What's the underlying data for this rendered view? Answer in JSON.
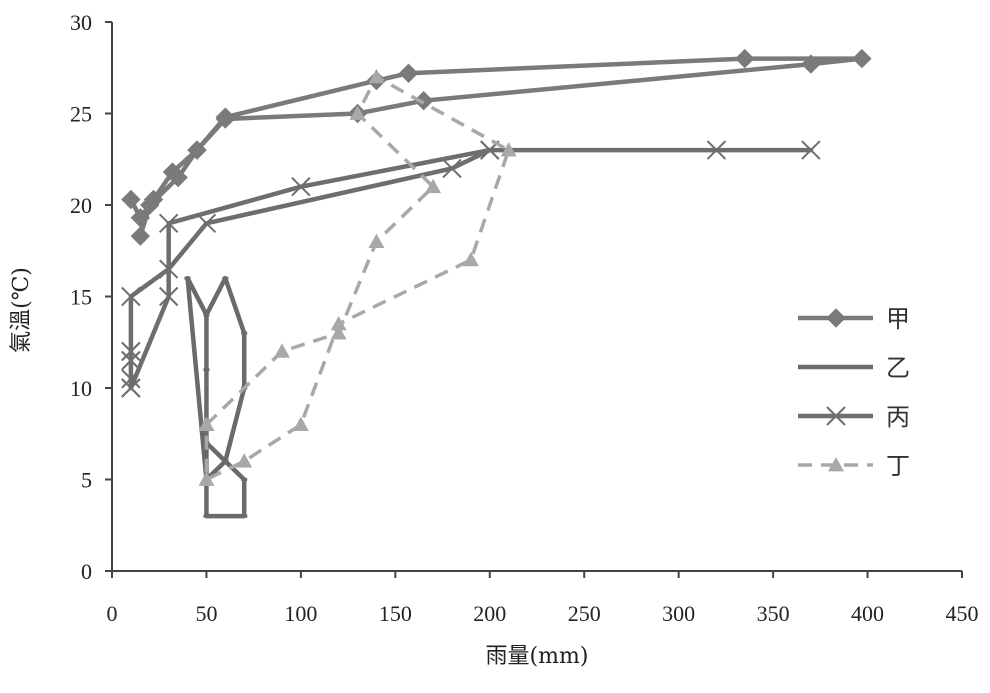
{
  "chart_data": {
    "type": "line",
    "title": "",
    "xlabel": "雨量(mm)",
    "ylabel": "氣溫(℃)",
    "xlim": [
      0,
      450
    ],
    "ylim": [
      0,
      30
    ],
    "xticks": [
      0,
      50,
      100,
      150,
      200,
      250,
      300,
      350,
      400,
      450
    ],
    "yticks": [
      0,
      5,
      10,
      15,
      20,
      25,
      30
    ],
    "grid": false,
    "legend_position": "right",
    "series": [
      {
        "name": "甲",
        "marker": "diamond",
        "style": "solid",
        "color": "#7a7a7a",
        "x": [
          10,
          15,
          22,
          32,
          45,
          60,
          130,
          165,
          370,
          397,
          335,
          157,
          140,
          60,
          45,
          35,
          20,
          15
        ],
        "y": [
          20.3,
          19.3,
          20.3,
          21.8,
          23,
          24.7,
          25,
          25.7,
          27.7,
          28,
          28,
          27.2,
          26.8,
          24.8,
          23,
          21.5,
          20,
          18.3
        ]
      },
      {
        "name": "乙",
        "marker": "dash",
        "style": "solid",
        "color": "#6a6a6a",
        "x": [
          40,
          50,
          50,
          50,
          60,
          70,
          70,
          70,
          50,
          50,
          50,
          50,
          60,
          70,
          70,
          60,
          50,
          40
        ],
        "y": [
          16,
          14,
          11,
          7,
          6,
          5,
          3,
          3,
          3,
          5,
          8,
          14,
          16,
          13,
          10,
          6,
          5,
          16
        ]
      },
      {
        "name": "丙",
        "marker": "x",
        "style": "solid",
        "color": "#6e6e6e",
        "x": [
          10,
          10,
          10,
          10,
          30,
          30,
          100,
          200,
          370,
          320,
          200,
          180,
          50,
          30,
          10,
          10,
          10,
          10
        ],
        "y": [
          12,
          11.5,
          10.5,
          10,
          15,
          19,
          21,
          23,
          23,
          23,
          23,
          22,
          19,
          16.5,
          15,
          12,
          11.5,
          10
        ]
      },
      {
        "name": "丁",
        "marker": "triangle",
        "style": "dashed",
        "color": "#a8a8a8",
        "x": [
          50,
          90,
          120,
          140,
          170,
          130,
          140,
          210,
          190,
          120,
          100,
          70,
          50,
          50
        ],
        "y": [
          8,
          12,
          13,
          18,
          21,
          25,
          27,
          23,
          17,
          13.5,
          8,
          6,
          5,
          8
        ]
      }
    ]
  }
}
